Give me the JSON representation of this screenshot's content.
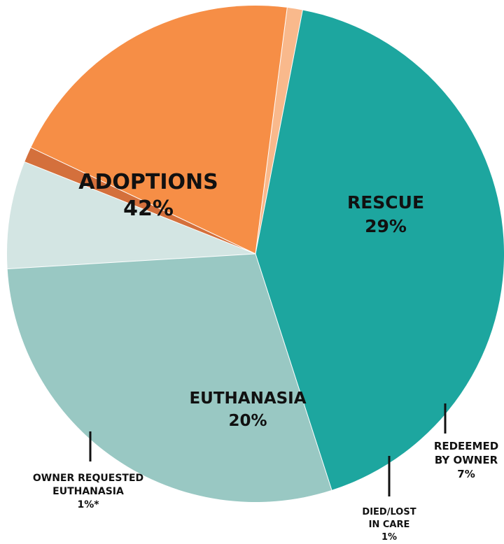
{
  "chart_data": {
    "type": "pie",
    "slices": [
      {
        "label": [
          "ADOPTIONS"
        ],
        "value_text": "42%",
        "value": 42,
        "color": "#1da69f"
      },
      {
        "label": [
          "RESCUE"
        ],
        "value_text": "29%",
        "value": 29,
        "color": "#99c8c3"
      },
      {
        "label": [
          "REDEEMED",
          "BY OWNER"
        ],
        "value_text": "7%",
        "value": 7,
        "color": "#d3e5e3"
      },
      {
        "label": [
          "DIED/LOST",
          "IN CARE"
        ],
        "value_text": "1%",
        "value": 1,
        "color": "#d4703c"
      },
      {
        "label": [
          "EUTHANASIA"
        ],
        "value_text": "20%",
        "value": 20,
        "color": "#f68e46"
      },
      {
        "label": [
          "OWNER REQUESTED",
          "EUTHANASIA"
        ],
        "value_text": "1%*",
        "value": 1,
        "color": "#f9b98c"
      }
    ]
  }
}
